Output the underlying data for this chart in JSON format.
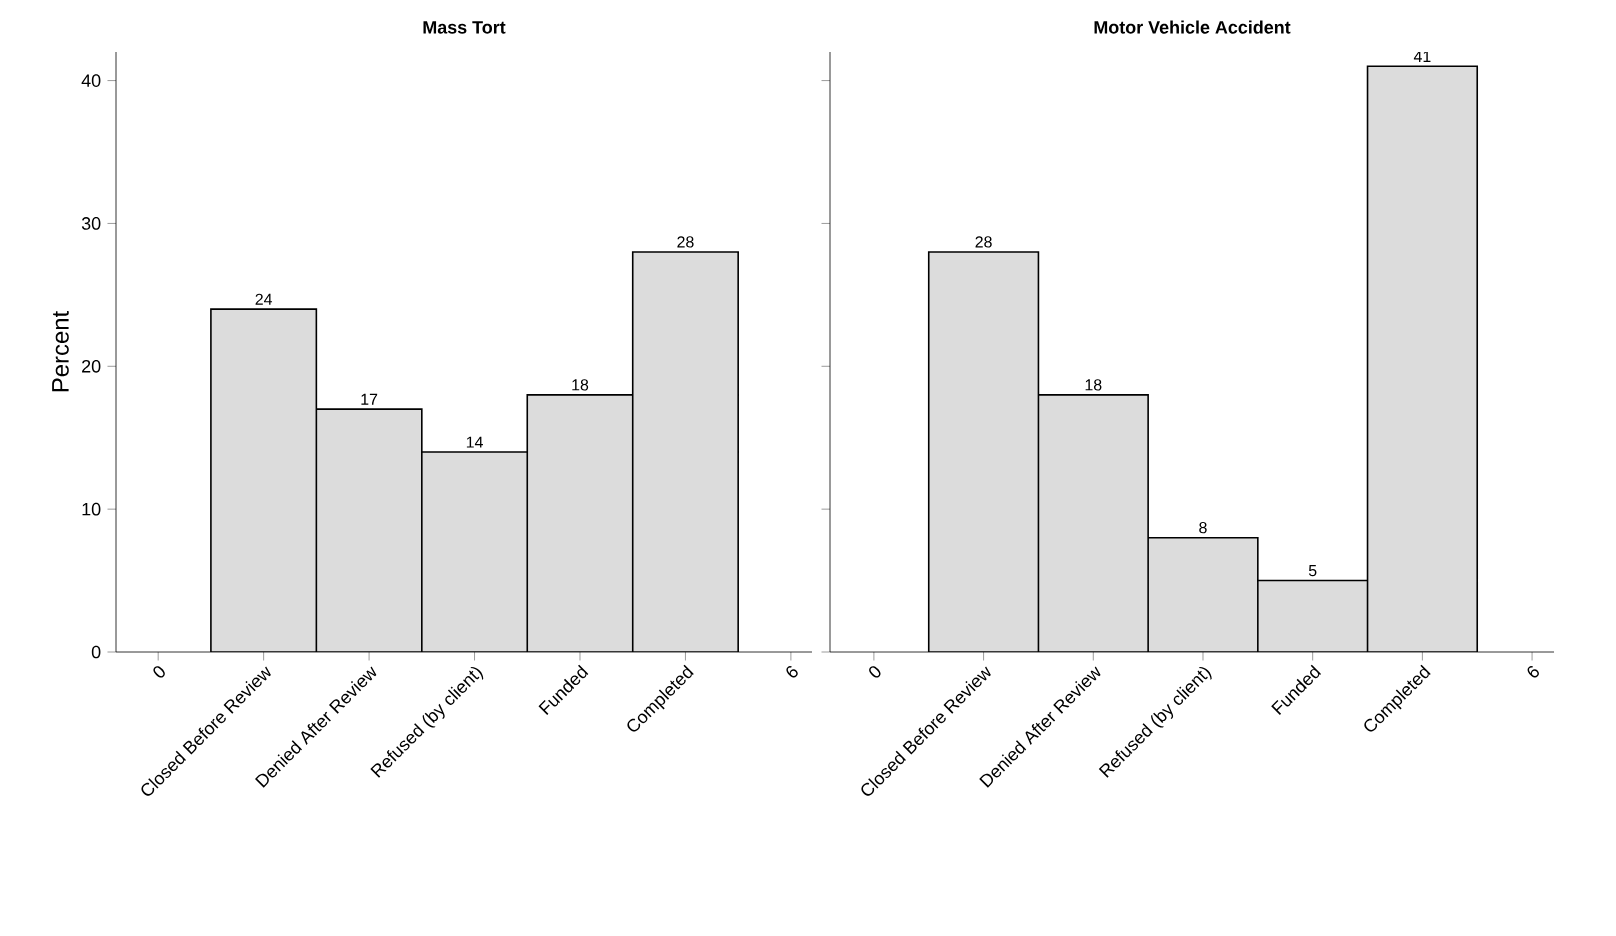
{
  "chart_data": [
    {
      "type": "bar",
      "title": "Mass Tort",
      "ylabel": "Percent",
      "x": [
        1,
        2,
        3,
        4,
        5
      ],
      "values": [
        24,
        17,
        14,
        18,
        28
      ],
      "color": "#dcdcdc",
      "data_labels": true,
      "xlim": [
        -0.4,
        6.2
      ],
      "ylim": [
        0,
        42
      ],
      "yticks": [
        0,
        10,
        20,
        30,
        40
      ],
      "xticks": [
        0,
        {
          "value": 1,
          "label": "Closed Before Review"
        },
        {
          "value": 2,
          "label": "Denied After Review"
        },
        {
          "value": 3,
          "label": "Refused (by client)"
        },
        {
          "value": 4,
          "label": "Funded"
        },
        {
          "value": 5,
          "label": "Completed"
        },
        6
      ],
      "grid": false
    },
    {
      "type": "bar",
      "title": "Motor Vehicle Accident",
      "x": [
        1,
        2,
        3,
        4,
        5
      ],
      "values": [
        28,
        18,
        8,
        5,
        41
      ],
      "color": "#dcdcdc",
      "data_labels": true,
      "xlim": [
        -0.4,
        6.2
      ],
      "ylim": [
        0,
        42
      ],
      "yticks": [
        0,
        10,
        20,
        30,
        40
      ],
      "tick_labels": "x",
      "xticks": [
        0,
        {
          "value": 1,
          "label": "Closed Before Review"
        },
        {
          "value": 2,
          "label": "Denied After Review"
        },
        {
          "value": 3,
          "label": "Refused (by client)"
        },
        {
          "value": 4,
          "label": "Funded"
        },
        {
          "value": 5,
          "label": "Completed"
        },
        6
      ],
      "grid": false
    }
  ]
}
